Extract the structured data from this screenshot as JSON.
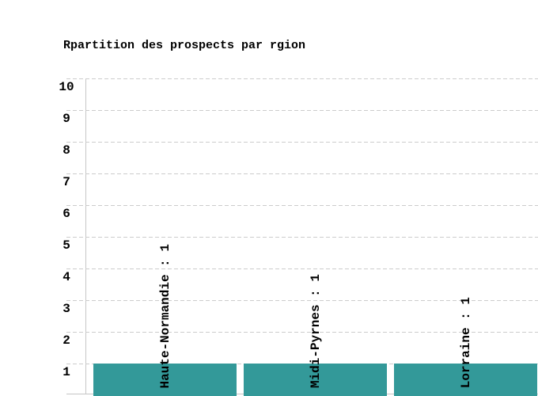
{
  "chart_data": {
    "type": "bar",
    "title": "Rpartition des prospects par rgion",
    "categories": [
      "Haute-Normandie",
      "Midi-Pyrnes",
      "Lorraine"
    ],
    "values": [
      1,
      1,
      1
    ],
    "bar_labels": [
      "Haute-Normandie : 1",
      "Midi-Pyrnes : 1",
      "Lorraine : 1"
    ],
    "xlabel": "",
    "ylabel": "",
    "ylim": [
      0,
      10
    ],
    "y_ticks": [
      1,
      2,
      3,
      4,
      5,
      6,
      7,
      8,
      9,
      10
    ],
    "grid": "horizontal-dashed",
    "legend": "none",
    "bar_color": "#339999",
    "grid_color": "#cccccc",
    "axis_color": "#c6c6c6",
    "text_color": "#000000",
    "background": "#ffffff"
  }
}
